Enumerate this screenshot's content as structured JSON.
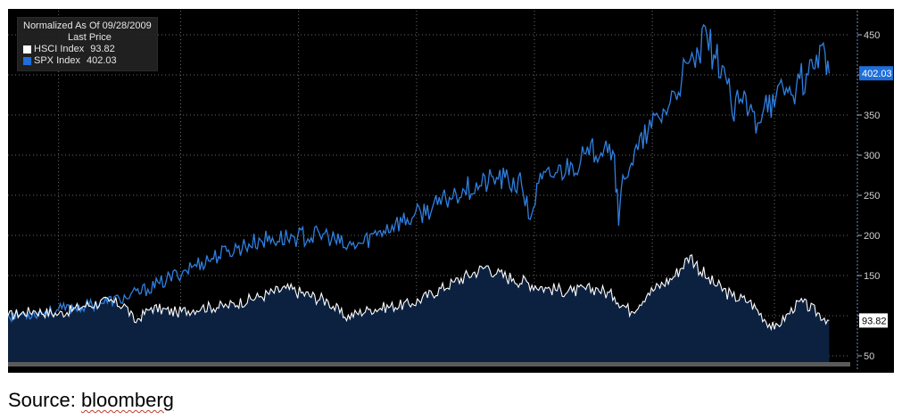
{
  "colors": {
    "background": "#000000",
    "spx": "#2f7fe0",
    "hsci": "#ffffff",
    "area_fill": "#0c2140",
    "axis_text": "#d0d0d0",
    "grid": "#6a6a6a"
  },
  "legend": {
    "heading": "Normalized As Of 09/28/2009",
    "subheading": "Last Price",
    "entries": [
      {
        "name": "HSCI Index",
        "value": "93.82",
        "color": "#ffffff"
      },
      {
        "name": "SPX Index",
        "value": "402.03",
        "color": "#1e6fd9"
      }
    ]
  },
  "source_note": {
    "prefix": "Source: ",
    "word": "bloomberg"
  },
  "chart_data": {
    "type": "line",
    "title": "",
    "xlabel": "",
    "ylabel": "",
    "y_axis_side": "right",
    "ylim": [
      40,
      480
    ],
    "y_ticks": [
      50,
      100,
      150,
      200,
      250,
      300,
      350,
      400,
      450
    ],
    "y_tick_labels": [
      "50",
      "",
      "150",
      "200",
      "250",
      "300",
      "350",
      "",
      "450"
    ],
    "x_domain": [
      0,
      100
    ],
    "x_tick_labels": [],
    "grid": true,
    "legend_position": "top-left",
    "series": [
      {
        "name": "HSCI Index",
        "last_value": "93.82",
        "fill_area": true,
        "x": [
          0,
          3,
          6,
          9,
          12,
          14,
          15,
          17,
          20,
          23,
          26,
          30,
          33,
          38,
          40,
          43,
          48,
          53,
          57,
          58,
          60,
          64,
          67,
          70,
          72,
          74,
          76,
          79,
          81,
          83,
          86,
          88,
          91,
          94,
          97.5
        ],
        "values": [
          100,
          106,
          102,
          112,
          118,
          112,
          92,
          110,
          104,
          110,
          112,
          124,
          134,
          118,
          98,
          108,
          115,
          142,
          162,
          152,
          146,
          134,
          130,
          134,
          123,
          105,
          128,
          148,
          175,
          146,
          124,
          118,
          83,
          118,
          94
        ]
      },
      {
        "name": "SPX Index",
        "last_value": "402.03",
        "fill_area": false,
        "x": [
          0,
          4,
          8,
          11,
          14,
          18,
          22,
          26,
          30,
          34,
          38,
          40,
          42,
          44,
          46,
          48,
          51,
          54,
          56,
          58,
          61,
          62,
          63,
          65,
          67,
          69,
          71,
          72,
          72.5,
          73,
          74,
          76,
          78,
          80,
          82,
          83,
          84,
          85,
          86,
          87,
          88,
          89,
          90,
          91,
          92,
          93,
          94,
          95,
          96,
          97,
          97.5
        ],
        "values": [
          100,
          104,
          110,
          116,
          122,
          140,
          162,
          180,
          194,
          198,
          200,
          185,
          190,
          205,
          215,
          222,
          238,
          258,
          262,
          272,
          262,
          220,
          265,
          278,
          288,
          300,
          318,
          300,
          212,
          275,
          290,
          330,
          355,
          395,
          425,
          448,
          420,
          410,
          350,
          370,
          355,
          340,
          375,
          360,
          385,
          375,
          395,
          400,
          425,
          428,
          402
        ]
      }
    ],
    "last_value_labels": [
      {
        "series": "SPX Index",
        "value": "402.03"
      },
      {
        "series": "HSCI Index",
        "value": "93.82"
      }
    ]
  }
}
